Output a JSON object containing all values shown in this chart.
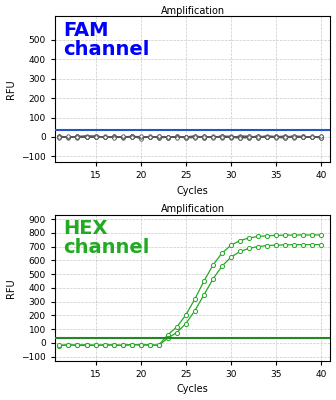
{
  "title": "Amplification",
  "xlabel": "Cycles",
  "ylabel": "RFU",
  "fam_label": "FAM\nchannel",
  "hex_label": "HEX\nchannel",
  "fam_color": "#0000FF",
  "hex_color": "#22AA22",
  "threshold_color_fam": "#2255CC",
  "threshold_color_hex": "#228822",
  "fam_ylim": [
    -130,
    620
  ],
  "hex_ylim": [
    -130,
    930
  ],
  "fam_yticks": [
    -100,
    0,
    100,
    200,
    300,
    400,
    500
  ],
  "hex_yticks": [
    -100,
    0,
    100,
    200,
    300,
    400,
    500,
    600,
    700,
    800,
    900
  ],
  "xlim": [
    10.5,
    41
  ],
  "xticks": [
    15,
    20,
    25,
    30,
    35,
    40
  ],
  "fam_threshold": 38,
  "hex_threshold": 38,
  "background_color": "#ffffff",
  "grid_color": "#bbbbbb"
}
